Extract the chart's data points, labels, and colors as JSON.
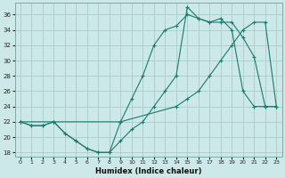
{
  "title": "",
  "xlabel": "Humidex (Indice chaleur)",
  "ylabel": "",
  "bg_color": "#cce8e8",
  "line_color": "#1a7a6e",
  "grid_color": "#aacccc",
  "x_ticks": [
    0,
    1,
    2,
    3,
    4,
    5,
    6,
    7,
    8,
    9,
    10,
    11,
    12,
    13,
    14,
    15,
    16,
    17,
    18,
    19,
    20,
    21,
    22,
    23
  ],
  "y_ticks": [
    18,
    20,
    22,
    24,
    26,
    28,
    30,
    32,
    34,
    36
  ],
  "ylim": [
    17.5,
    37.5
  ],
  "xlim": [
    -0.5,
    23.5
  ],
  "series1_x": [
    0,
    1,
    2,
    3,
    4,
    5,
    6,
    7,
    8,
    9,
    10,
    11,
    12,
    13,
    14,
    15,
    16,
    17,
    18,
    19,
    20,
    21,
    22,
    23
  ],
  "series1_y": [
    22,
    21.5,
    21.5,
    22,
    20.5,
    19.5,
    18.5,
    18,
    18,
    19.5,
    21,
    22,
    24,
    26,
    28,
    37,
    35.5,
    35,
    35.5,
    34,
    26,
    24,
    24,
    24
  ],
  "series2_x": [
    0,
    1,
    2,
    3,
    4,
    5,
    6,
    7,
    8,
    9,
    10,
    11,
    12,
    13,
    14,
    15,
    16,
    17,
    18,
    19,
    20,
    21,
    22,
    23
  ],
  "series2_y": [
    22,
    21.5,
    21.5,
    22,
    20.5,
    19.5,
    18.5,
    18,
    18,
    22,
    25,
    28,
    32,
    34,
    34.5,
    36,
    35.5,
    35,
    35,
    35,
    33,
    30.5,
    24,
    24
  ],
  "series3_x": [
    0,
    3,
    9,
    14,
    15,
    16,
    17,
    18,
    19,
    20,
    21,
    22,
    23
  ],
  "series3_y": [
    22,
    22,
    22,
    24,
    25,
    26,
    28,
    30,
    32,
    34,
    35,
    35,
    24
  ]
}
